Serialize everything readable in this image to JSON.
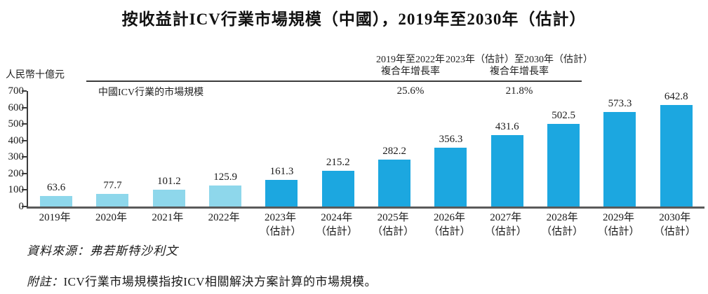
{
  "title": "按收益計ICV行業市場規模（中國），2019年至2030年（估計）",
  "y_axis": {
    "unit": "人民幣十億元",
    "ticks": [
      700,
      600,
      500,
      400,
      300,
      200,
      100,
      0
    ]
  },
  "legend": {
    "series_label": "中國ICV行業的市場規模"
  },
  "cagr": [
    {
      "period": "2019年至2022年",
      "metric": "複合年增長率",
      "value": "25.6%"
    },
    {
      "period": "2023年（估計）至2030年（估計）",
      "metric": "複合年增長率",
      "value": "21.8%"
    }
  ],
  "chart_data": {
    "type": "bar",
    "title": "按收益計ICV行業市場規模（中國），2019年至2030年（估計）",
    "xlabel": "",
    "ylabel": "人民幣十億元",
    "ylim": [
      0,
      700
    ],
    "grid": false,
    "legend_position": "top-left",
    "categories": [
      "2019年",
      "2020年",
      "2021年",
      "2022年",
      "2023年\n（估計）",
      "2024年\n（估計）",
      "2025年\n（估計）",
      "2026年\n（估計）",
      "2027年\n（估計）",
      "2028年\n（估計）",
      "2029年\n（估計）",
      "2030年\n（估計）"
    ],
    "values": [
      63.6,
      77.7,
      101.2,
      125.9,
      161.3,
      215.2,
      282.2,
      356.3,
      431.6,
      502.5,
      573.3,
      642.8
    ],
    "estimate_from_index": 4,
    "bar_colors": {
      "actual": "#8ed7eb",
      "estimate": "#1ca7e0"
    }
  },
  "source": "資料來源：弗若斯特沙利文",
  "note": {
    "prefix": "附註：",
    "body": "ICV行業市場規模指按ICV相關解決方案計算的市場規模。"
  }
}
